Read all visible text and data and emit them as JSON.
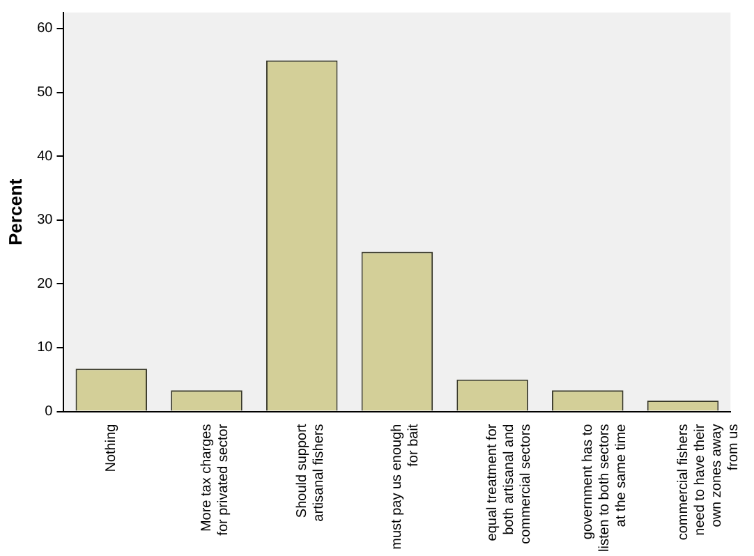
{
  "chart_data": {
    "type": "bar",
    "ylabel": "Percent",
    "categories": [
      "Nothing",
      "More tax charges\nfor privated sector",
      "Should support\nartisanal fishers",
      "must pay us enough\nfor bait",
      "equal treatment for\nboth artisanal and\ncommercial sectors",
      "government has to\nlisten to both sectors\nat the same time",
      "commercial fishers\nneed to have their\nown zones away\nfrom us"
    ],
    "values": [
      6.7,
      3.3,
      55,
      25,
      5,
      3.3,
      1.7
    ],
    "color": "#d3cf98",
    "ylim": [
      0,
      62.5
    ],
    "yticks": [
      0,
      10,
      20,
      30,
      40,
      50,
      60
    ],
    "grid": false,
    "legend": false
  }
}
